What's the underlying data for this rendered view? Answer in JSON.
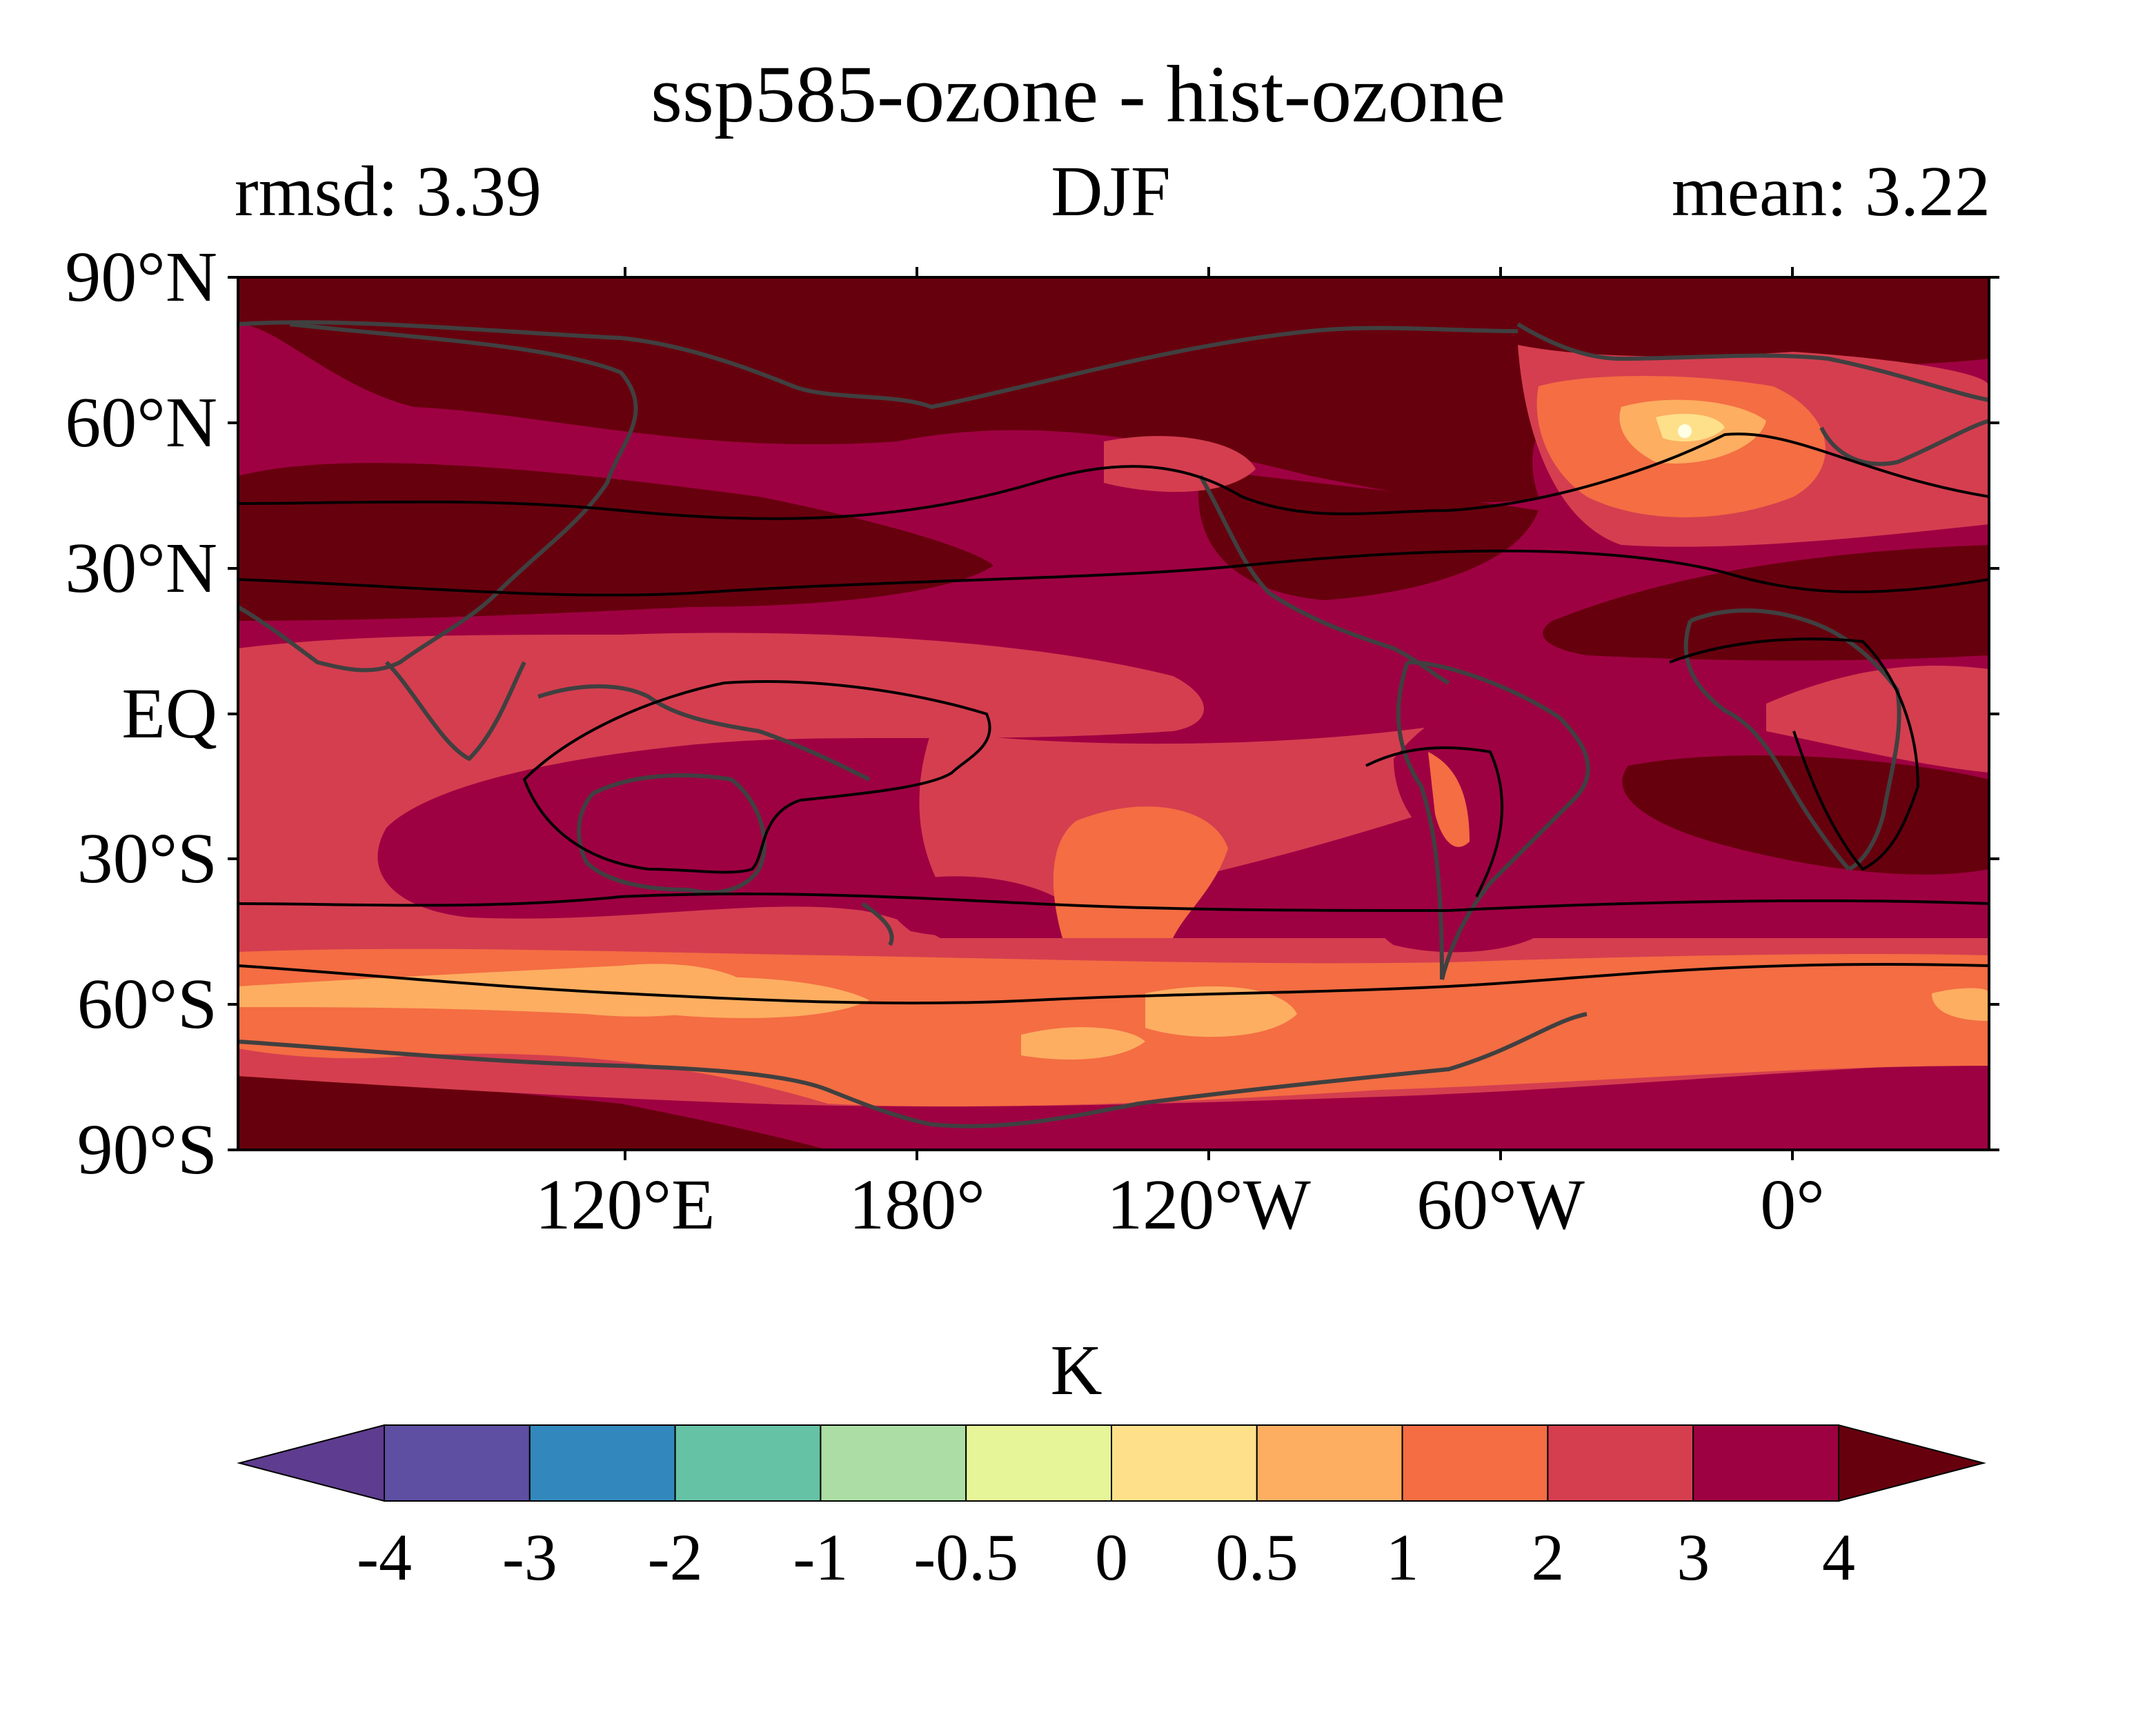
{
  "figure": {
    "title": "ssp585-ozone - hist-ozone",
    "subtitle_left": "rmsd: 3.39",
    "subtitle_center": "DJF",
    "subtitle_right": "mean: 3.22"
  },
  "map": {
    "projection": "PlateCarree",
    "lon_range": [
      60,
      420
    ],
    "lat_range": [
      -90,
      90
    ],
    "y_ticks": [
      {
        "lat": 90,
        "label": "90°N"
      },
      {
        "lat": 60,
        "label": "60°N"
      },
      {
        "lat": 30,
        "label": "30°N"
      },
      {
        "lat": 0,
        "label": "EQ"
      },
      {
        "lat": -30,
        "label": "30°S"
      },
      {
        "lat": -60,
        "label": "60°S"
      },
      {
        "lat": -90,
        "label": "90°S"
      }
    ],
    "x_ticks": [
      {
        "lon": 120,
        "label": "120°E"
      },
      {
        "lon": 180,
        "label": "180°"
      },
      {
        "lon": 240,
        "label": "120°W"
      },
      {
        "lon": 300,
        "label": "60°W"
      },
      {
        "lon": 360,
        "label": "0°"
      }
    ],
    "coastline_color": "#404040",
    "contour_line_color": "#000000"
  },
  "colorbar": {
    "unit": "K",
    "extend": "both",
    "levels": [
      "-4",
      "-3",
      "-2",
      "-1",
      "-0.5",
      "0",
      "0.5",
      "1",
      "2",
      "3",
      "4"
    ],
    "colors": [
      "#5e3c8f",
      "#5e4fa2",
      "#3288bd",
      "#66c2a5",
      "#abdda4",
      "#e6f598",
      "#fee08b",
      "#fdae61",
      "#f46d43",
      "#d53e4f",
      "#9e0142",
      "#67000d"
    ]
  }
}
